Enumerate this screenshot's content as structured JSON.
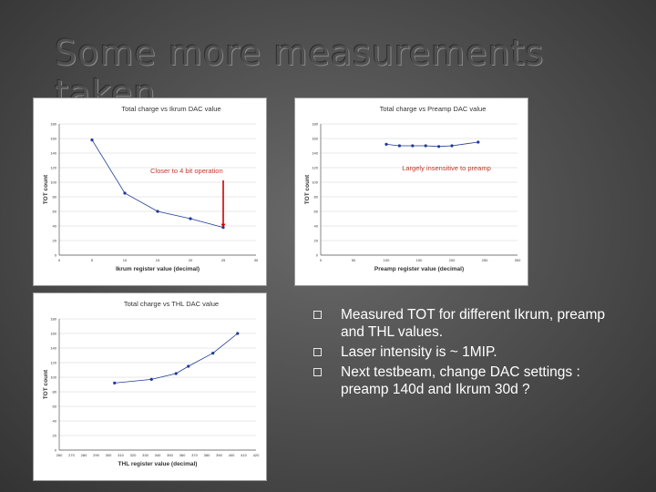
{
  "slide": {
    "title": "Some more measurements taken."
  },
  "bullets": [
    "Measured TOT for different Ikrum, preamp and THL values.",
    "Laser intensity is ~ 1MIP.",
    "Next testbeam, change DAC settings : preamp 140d and Ikrum 30d ?"
  ],
  "chart_data": [
    {
      "type": "line",
      "title": "Total charge vs Ikrum DAC value",
      "xlabel": "Ikrum register value (decimal)",
      "ylabel": "TOT count",
      "xlim": [
        0,
        30
      ],
      "ylim": [
        0,
        180
      ],
      "xticks": [
        "0",
        "5",
        "10",
        "15",
        "20",
        "25",
        "30"
      ],
      "yticks": [
        "0",
        "20",
        "40",
        "60",
        "80",
        "100",
        "120",
        "140",
        "160",
        "180"
      ],
      "x": [
        5,
        10,
        15,
        20,
        25
      ],
      "values": [
        158,
        85,
        60,
        50,
        38
      ],
      "annotation": "Closer to 4 bit operation",
      "color": "#1f3a93"
    },
    {
      "type": "line",
      "title": "Total charge vs Preamp DAC value",
      "xlabel": "Preamp register value (decimal)",
      "ylabel": "TOT count",
      "xlim": [
        0,
        300
      ],
      "ylim": [
        0,
        180
      ],
      "xticks": [
        "0",
        "50",
        "100",
        "150",
        "200",
        "250",
        "300"
      ],
      "yticks": [
        "0",
        "20",
        "40",
        "60",
        "80",
        "100",
        "120",
        "140",
        "160",
        "180"
      ],
      "x": [
        100,
        120,
        140,
        160,
        180,
        200,
        240
      ],
      "values": [
        152,
        150,
        150,
        150,
        149,
        150,
        155
      ],
      "annotation": "Largely insensitive to preamp",
      "color": "#1f3a93"
    },
    {
      "type": "line",
      "title": "Total charge vs THL DAC value",
      "xlabel": "THL register value (decimal)",
      "ylabel": "TOT count",
      "xlim": [
        260,
        420
      ],
      "ylim": [
        0,
        180
      ],
      "xticks": [
        "260",
        "270",
        "280",
        "290",
        "300",
        "310",
        "320",
        "330",
        "340",
        "350",
        "360",
        "370",
        "380",
        "390",
        "400",
        "410",
        "420"
      ],
      "yticks": [
        "0",
        "20",
        "40",
        "60",
        "80",
        "100",
        "120",
        "140",
        "160",
        "180"
      ],
      "x": [
        305,
        335,
        355,
        365,
        385,
        405
      ],
      "values": [
        92,
        97,
        105,
        115,
        133,
        160
      ],
      "color": "#1f3a93"
    }
  ]
}
